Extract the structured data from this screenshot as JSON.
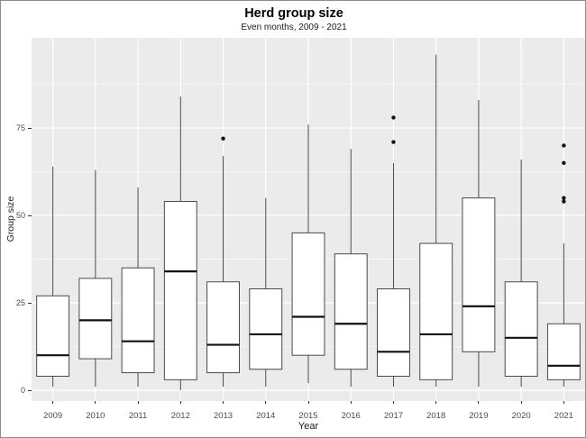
{
  "figure": {
    "background": "#ffffff",
    "border_color": "#8c8c8c",
    "panel_background": "#ebebeb",
    "grid_major_color": "#ffffff",
    "grid_minor_color": "#f5f5f5"
  },
  "chart_data": {
    "type": "boxplot",
    "title": "Herd group size",
    "subtitle": "Even months, 2009 - 2021",
    "xlabel": "Year",
    "ylabel": "Group size",
    "categories": [
      "2009",
      "2010",
      "2011",
      "2012",
      "2013",
      "2014",
      "2015",
      "2016",
      "2017",
      "2018",
      "2019",
      "2020",
      "2021"
    ],
    "y_ticks": [
      0,
      25,
      50,
      75
    ],
    "y_minor_ticks": [
      12.5,
      37.5,
      62.5,
      87.5
    ],
    "ylim": [
      -3.1,
      100.8
    ],
    "grid": "white major and minor horizontal lines, white vertical line per category, on gray panel",
    "legend_position": "none",
    "box_style": {
      "fill": "#ffffff",
      "border_color": "#4a4a4a",
      "median_color": "#111111",
      "whisker_color": "#4a4a4a",
      "outlier_color": "#111111",
      "box_width_fraction": 0.76
    },
    "series": [
      {
        "category": "2009",
        "min": 1,
        "q1": 4,
        "median": 10,
        "q3": 27,
        "max": 64,
        "outliers": []
      },
      {
        "category": "2010",
        "min": 1,
        "q1": 9,
        "median": 20,
        "q3": 32,
        "max": 63,
        "outliers": []
      },
      {
        "category": "2011",
        "min": 1,
        "q1": 5,
        "median": 14,
        "q3": 35,
        "max": 58,
        "outliers": []
      },
      {
        "category": "2012",
        "min": 0,
        "q1": 3,
        "median": 34,
        "q3": 54,
        "max": 84,
        "outliers": []
      },
      {
        "category": "2013",
        "min": 1,
        "q1": 5,
        "median": 13,
        "q3": 31,
        "max": 67,
        "outliers": [
          72
        ]
      },
      {
        "category": "2014",
        "min": 1,
        "q1": 6,
        "median": 16,
        "q3": 29,
        "max": 55,
        "outliers": []
      },
      {
        "category": "2015",
        "min": 2,
        "q1": 10,
        "median": 21,
        "q3": 45,
        "max": 76,
        "outliers": []
      },
      {
        "category": "2016",
        "min": 1,
        "q1": 6,
        "median": 19,
        "q3": 39,
        "max": 69,
        "outliers": []
      },
      {
        "category": "2017",
        "min": 1,
        "q1": 4,
        "median": 11,
        "q3": 29,
        "max": 65,
        "outliers": [
          71,
          78
        ]
      },
      {
        "category": "2018",
        "min": 1,
        "q1": 3,
        "median": 16,
        "q3": 42,
        "max": 96,
        "outliers": []
      },
      {
        "category": "2019",
        "min": 1,
        "q1": 11,
        "median": 24,
        "q3": 55,
        "max": 83,
        "outliers": []
      },
      {
        "category": "2020",
        "min": 1,
        "q1": 4,
        "median": 15,
        "q3": 31,
        "max": 66,
        "outliers": []
      },
      {
        "category": "2021",
        "min": 1,
        "q1": 3,
        "median": 7,
        "q3": 19,
        "max": 42,
        "outliers": [
          54,
          55,
          65,
          70
        ]
      }
    ]
  }
}
